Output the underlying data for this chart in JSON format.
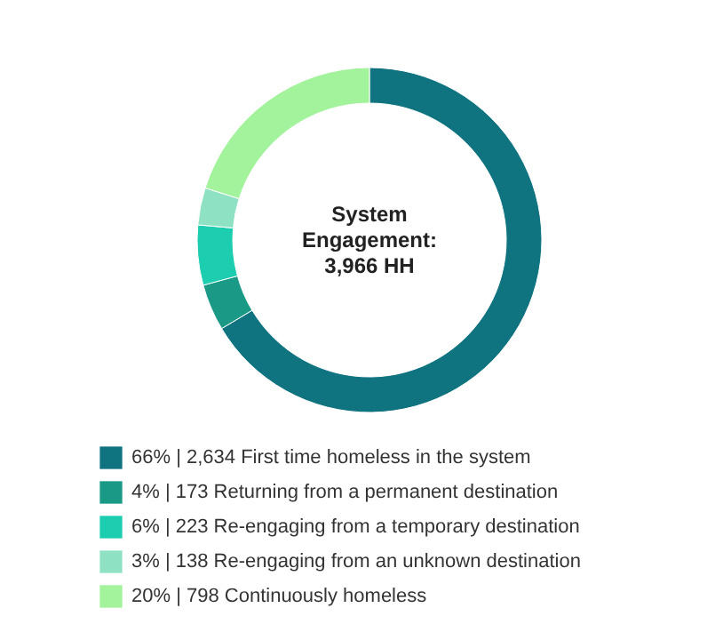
{
  "chart_data": {
    "type": "donut",
    "title": "System Engagement: 3,966 HH",
    "categories": [
      "First time homeless in the system",
      "Returning from a permanent destination",
      "Re-engaging from a temporary destination",
      "Re-engaging from an unknown destination",
      "Continuously homeless"
    ],
    "values": [
      2634,
      173,
      223,
      138,
      798
    ],
    "value_labels": [
      "66% | 2,634",
      "4% | 173",
      "6% | 223",
      "3% | 138",
      "20% | 798"
    ],
    "colors": [
      "#0f7380",
      "#1a9a86",
      "#1ccdaf",
      "#8ee2c3",
      "#a3f29c"
    ],
    "legend": "bottom left"
  }
}
